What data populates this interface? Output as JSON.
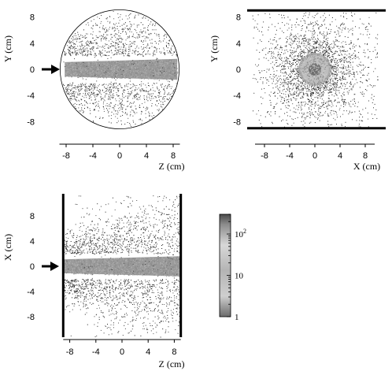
{
  "figure": {
    "colors": {
      "ink": "#000000",
      "band": "#9a9a9a",
      "dots": "#555555",
      "core": "#6e6e6e"
    }
  },
  "chart_data": [
    {
      "type": "heatmap",
      "panel": "top-left",
      "xlabel": "Z (cm)",
      "ylabel": "Y (cm)",
      "x_ticks": [
        "-8",
        "-4",
        "0",
        "4",
        "8"
      ],
      "y_ticks": [
        "8",
        "4",
        "0",
        "-4",
        "-8"
      ],
      "xlim": [
        -9,
        9
      ],
      "ylim": [
        -9,
        9
      ],
      "region": "circle",
      "region_radius_cm": 9,
      "beam_band_halfwidth_cm": [
        1.1,
        1.6
      ],
      "beam_direction": "+Z",
      "beam_arrow_at": 0
    },
    {
      "type": "heatmap",
      "panel": "top-right",
      "xlabel": "X (cm)",
      "ylabel": "Y (cm)",
      "x_ticks": [
        "-8",
        "-4",
        "0",
        "4",
        "8"
      ],
      "y_ticks": [
        "8",
        "4",
        "0",
        "-4",
        "-8"
      ],
      "xlim": [
        -9.5,
        9.5
      ],
      "ylim": [
        -9,
        9
      ],
      "boundary_lines_y": [
        9,
        -9
      ],
      "core_radius_cm": 2.2
    },
    {
      "type": "heatmap",
      "panel": "bottom-left",
      "xlabel": "Z (cm)",
      "ylabel": "X (cm)",
      "x_ticks": [
        "-8",
        "-4",
        "0",
        "4",
        "8"
      ],
      "y_ticks": [
        "8",
        "4",
        "0",
        "-4",
        "-8"
      ],
      "xlim": [
        -9,
        9
      ],
      "ylim": [
        -10,
        10
      ],
      "boundary_lines_z": [
        -9,
        9
      ],
      "beam_band_halfwidth_cm": [
        1.1,
        1.6
      ],
      "beam_direction": "+Z",
      "beam_arrow_at": 0
    }
  ],
  "colorbar": {
    "scale": "log",
    "range": [
      1,
      300
    ],
    "tick_labels": [
      {
        "value": 1,
        "base": "1",
        "exp": ""
      },
      {
        "value": 10,
        "base": "10",
        "exp": ""
      },
      {
        "value": 100,
        "base": "10",
        "exp": "2"
      }
    ]
  }
}
